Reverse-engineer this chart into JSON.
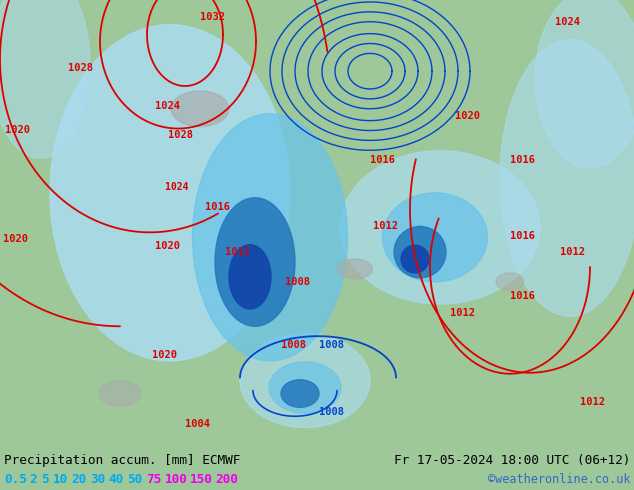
{
  "title_left": "Precipitation accum. [mm] ECMWF",
  "title_right": "Fr 17-05-2024 18:00 UTC (06+12)",
  "copyright": "©weatheronline.co.uk",
  "legend_labels": [
    "0.5",
    "2",
    "5",
    "10",
    "20",
    "30",
    "40",
    "50",
    "75",
    "100",
    "150",
    "200"
  ],
  "legend_colors_cyan": [
    "#00ccff",
    "#00ccff",
    "#00ccff",
    "#00ccff",
    "#00ccff",
    "#00ccff",
    "#00ccff",
    "#00ccff"
  ],
  "legend_colors_magenta": [
    "#ff44ff",
    "#ff44ff",
    "#ff44ff",
    "#ff44ff"
  ],
  "bottom_bg": "#cccccc",
  "text_color": "#000000",
  "cyan_color": "#00aaee",
  "magenta_color": "#ee00ee",
  "blue_color": "#3366cc",
  "figsize": [
    6.34,
    4.9
  ],
  "dpi": 100,
  "map_green": "#9ec89a",
  "map_light_blue": "#aadcf0",
  "map_mid_blue": "#6bc4e8",
  "map_dark_blue": "#2277bb",
  "map_deep_blue": "#1144aa",
  "map_gray": "#aaaaaa",
  "isobar_red": "#dd0000",
  "isobar_blue": "#0044cc"
}
